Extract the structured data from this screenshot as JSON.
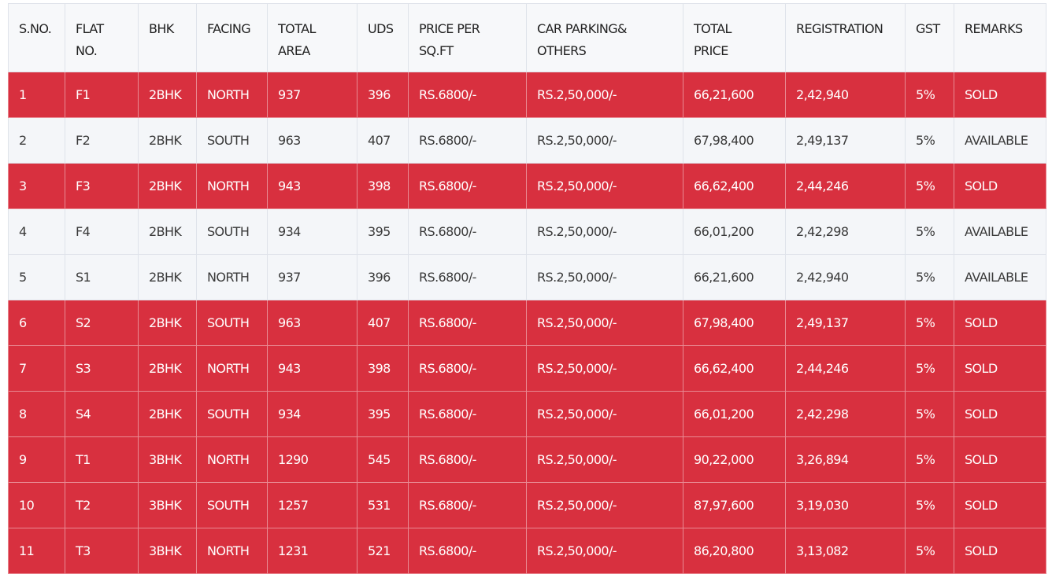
{
  "table": {
    "headers": [
      [
        "S.NO."
      ],
      [
        "FLAT",
        "NO."
      ],
      [
        "BHK"
      ],
      [
        "FACING"
      ],
      [
        "TOTAL",
        "AREA"
      ],
      [
        "UDS"
      ],
      [
        "PRICE PER",
        "SQ.FT"
      ],
      [
        "CAR PARKING&",
        "OTHERS"
      ],
      [
        "TOTAL",
        "PRICE"
      ],
      [
        "REGISTRATION"
      ],
      [
        "GST"
      ],
      [
        "REMARKS"
      ]
    ],
    "rows": [
      [
        "1",
        "F1",
        "2BHK",
        "NORTH",
        "937",
        "396",
        "RS.6800/-",
        "RS.2,50,000/-",
        "66,21,600",
        "2,42,940",
        "5%",
        "SOLD"
      ],
      [
        "2",
        "F2",
        "2BHK",
        "SOUTH",
        "963",
        "407",
        "RS.6800/-",
        "RS.2,50,000/-",
        "67,98,400",
        "2,49,137",
        "5%",
        "AVAILABLE"
      ],
      [
        "3",
        "F3",
        "2BHK",
        "NORTH",
        "943",
        "398",
        "RS.6800/-",
        "RS.2,50,000/-",
        "66,62,400",
        "2,44,246",
        "5%",
        "SOLD"
      ],
      [
        "4",
        "F4",
        "2BHK",
        "SOUTH",
        "934",
        "395",
        "RS.6800/-",
        "RS.2,50,000/-",
        "66,01,200",
        "2,42,298",
        "5%",
        "AVAILABLE"
      ],
      [
        "5",
        "S1",
        "2BHK",
        "NORTH",
        "937",
        "396",
        "RS.6800/-",
        "RS.2,50,000/-",
        "66,21,600",
        "2,42,940",
        "5%",
        "AVAILABLE"
      ],
      [
        "6",
        "S2",
        "2BHK",
        "SOUTH",
        "963",
        "407",
        "RS.6800/-",
        "RS.2,50,000/-",
        "67,98,400",
        "2,49,137",
        "5%",
        "SOLD"
      ],
      [
        "7",
        "S3",
        "2BHK",
        "NORTH",
        "943",
        "398",
        "RS.6800/-",
        "RS.2,50,000/-",
        "66,62,400",
        "2,44,246",
        "5%",
        "SOLD"
      ],
      [
        "8",
        "S4",
        "2BHK",
        "SOUTH",
        "934",
        "395",
        "RS.6800/-",
        "RS.2,50,000/-",
        "66,01,200",
        "2,42,298",
        "5%",
        "SOLD"
      ],
      [
        "9",
        "T1",
        "3BHK",
        "NORTH",
        "1290",
        "545",
        "RS.6800/-",
        "RS.2,50,000/-",
        "90,22,000",
        "3,26,894",
        "5%",
        "SOLD"
      ],
      [
        "10",
        "T2",
        "3BHK",
        "SOUTH",
        "1257",
        "531",
        "RS.6800/-",
        "RS.2,50,000/-",
        "87,97,600",
        "3,19,030",
        "5%",
        "SOLD"
      ],
      [
        "11",
        "T3",
        "3BHK",
        "NORTH",
        "1231",
        "521",
        "RS.6800/-",
        "RS.2,50,000/-",
        "86,20,800",
        "3,13,082",
        "5%",
        "SOLD"
      ]
    ]
  }
}
